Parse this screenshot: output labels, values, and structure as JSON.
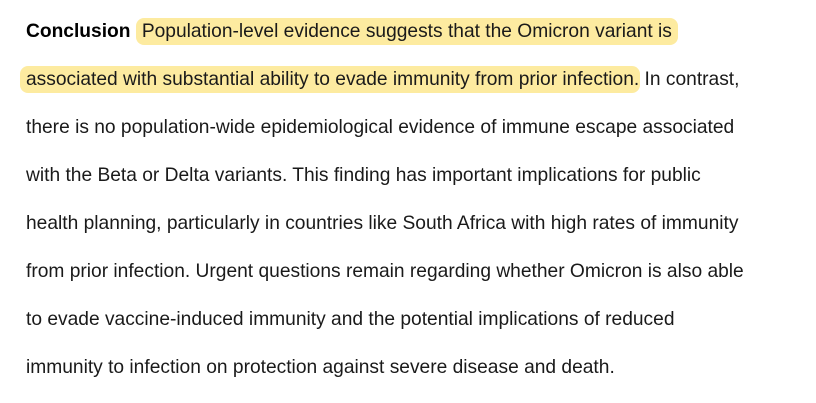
{
  "heading": "Conclusion",
  "lines": [
    {
      "highlight": "Population-level evidence suggests that the Omicron variant is",
      "rest": ""
    },
    {
      "highlight": "associated with substantial ability to evade immunity from prior infection",
      "rest": ". In contrast,"
    },
    {
      "text": "there is no population-wide epidemiological evidence of immune escape associated"
    },
    {
      "text": "with the Beta or Delta variants. This finding has important implications for public"
    },
    {
      "text": "health planning, particularly in countries like South Africa with high rates of immunity"
    },
    {
      "text": "from prior infection. Urgent questions remain regarding whether Omicron is also able"
    },
    {
      "text": "to evade vaccine-induced immunity and the potential implications of reduced"
    },
    {
      "text": "immunity to infection on protection against severe disease and death."
    }
  ],
  "colors": {
    "highlight": "#fdeba0",
    "text": "#1a1a1a"
  }
}
